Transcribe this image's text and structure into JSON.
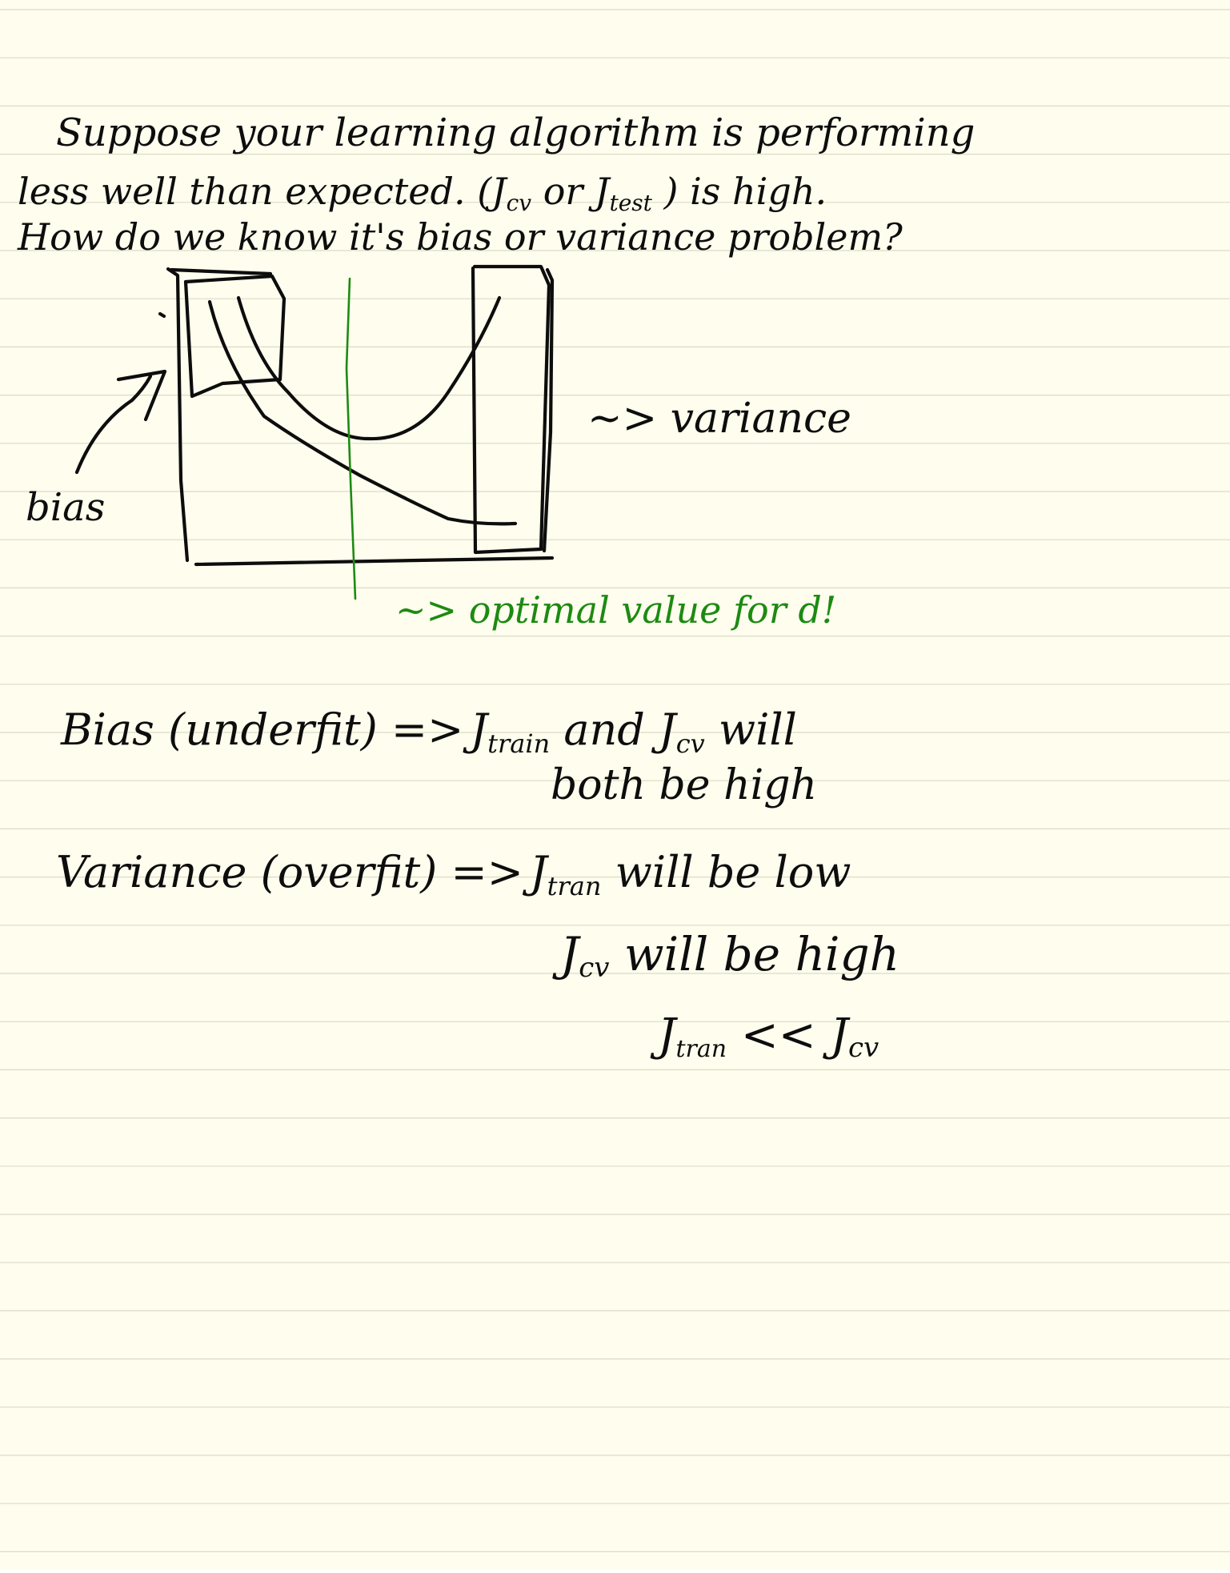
{
  "colors": {
    "paper": "#fefdee",
    "rule": "#dcdbc8",
    "ink": "#0d0d0d",
    "green_ink": "#1d8a12"
  },
  "intro": {
    "line1": "Suppose your learning algorithm is performing",
    "line2_a": "less well than expected. (J",
    "line2_cv_sub": "cv",
    "line2_b": " or J",
    "line2_test_sub": "test",
    "line2_c": " ) is high.",
    "line3": "How do we know it's bias or variance problem?"
  },
  "diagram": {
    "bias_label": "bias",
    "variance_label": "~> variance",
    "optimal_label": "~> optimal value for d!"
  },
  "bias_note": {
    "head": "Bias (underfit) =>",
    "j_a": "J",
    "train_sub": "train",
    "rest": " and J",
    "cv_sub": "cv",
    "will": " will",
    "line2": "both be high"
  },
  "variance_note": {
    "head": "Variance (overfit) =>",
    "j_a": "J",
    "tran_sub": "tran",
    "rest1": " will be low",
    "j_b": "J",
    "cv_sub": "cv",
    "rest2": " will be high",
    "rel_j1": "J",
    "rel_tran_sub": "tran",
    "rel_op": " << ",
    "rel_j2": "J",
    "rel_cv_sub": "cv"
  }
}
